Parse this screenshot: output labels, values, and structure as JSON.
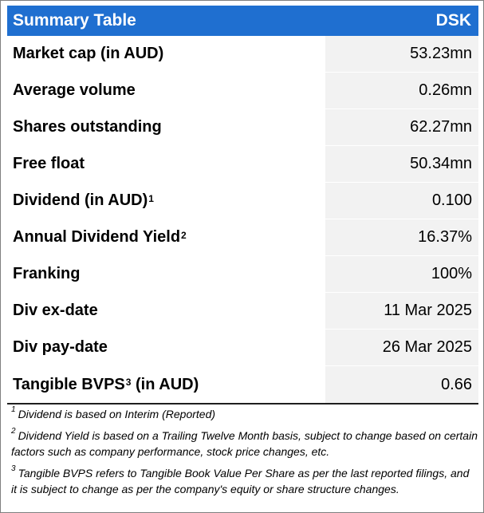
{
  "header": {
    "title": "Summary Table",
    "ticker": "DSK"
  },
  "rows": [
    {
      "label": "Market cap (in AUD)",
      "sup": "",
      "value": "53.23mn"
    },
    {
      "label": "Average volume",
      "sup": "",
      "value": "0.26mn"
    },
    {
      "label": "Shares outstanding",
      "sup": "",
      "value": "62.27mn"
    },
    {
      "label": "Free float",
      "sup": "",
      "value": "50.34mn"
    },
    {
      "label": "Dividend (in AUD)",
      "sup": "1",
      "value": "0.100"
    },
    {
      "label": "Annual Dividend Yield",
      "sup": "2",
      "value": "16.37%"
    },
    {
      "label": "Franking",
      "sup": "",
      "value": "100%"
    },
    {
      "label": "Div ex-date",
      "sup": "",
      "value": "11 Mar 2025"
    },
    {
      "label": "Div pay-date",
      "sup": "",
      "value": "26 Mar 2025"
    },
    {
      "label": "Tangible BVPS",
      "sup": "3",
      "label_suffix": " (in AUD)",
      "value": "0.66"
    }
  ],
  "footnotes": [
    {
      "num": "1",
      "text": "Dividend is based on Interim (Reported)"
    },
    {
      "num": "2",
      "text": "Dividend Yield is based on a Trailing Twelve Month basis, subject to change based on certain factors such as company performance, stock price changes, etc."
    },
    {
      "num": "3",
      "text": "Tangible BVPS refers to Tangible Book Value Per Share as per the last reported filings, and it is subject to change as per the company's equity or share structure changes."
    }
  ],
  "colors": {
    "header_bg": "#1f6fd0",
    "header_text": "#ffffff",
    "value_bg": "#f2f2f2"
  }
}
